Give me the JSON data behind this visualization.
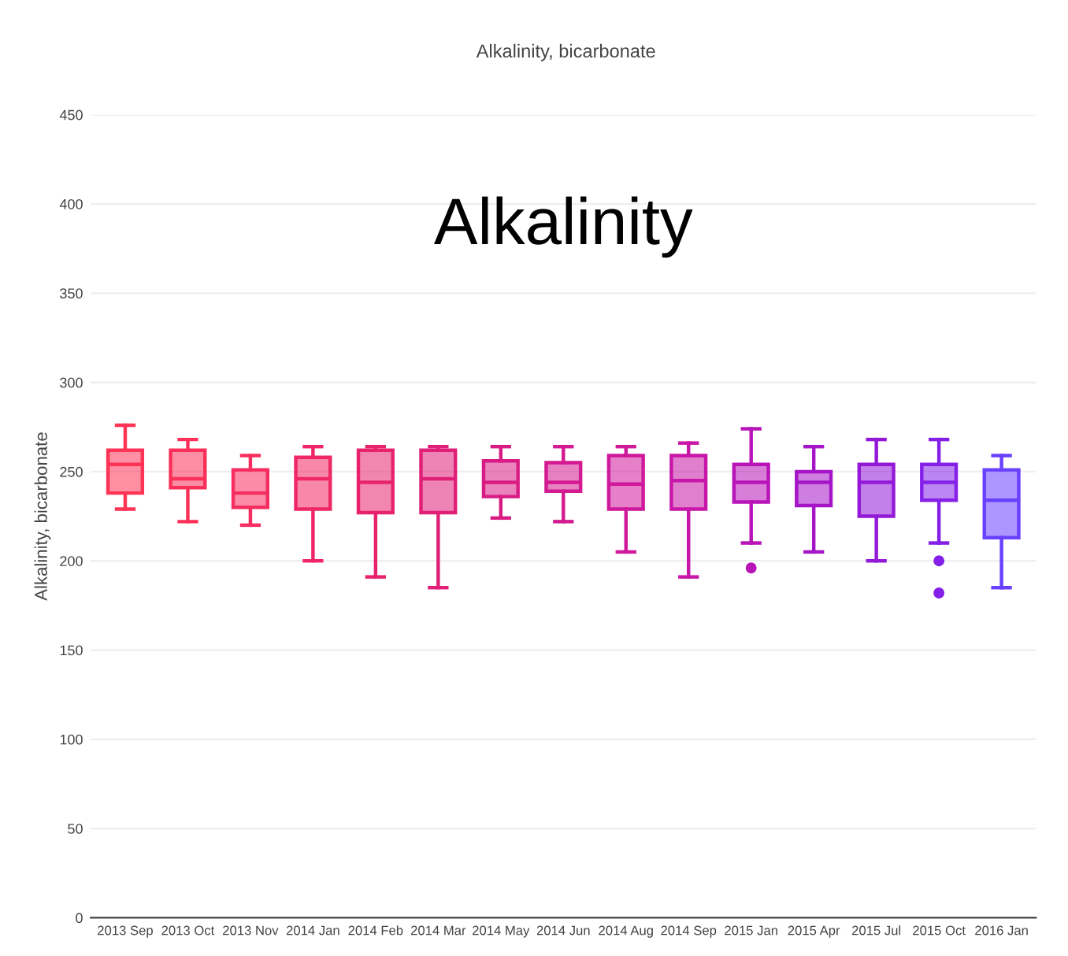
{
  "chart_data": {
    "type": "box",
    "title": "Alkalinity, bicarbonate",
    "ylabel": "Alkalinity, bicarbonate",
    "annotations": [
      "Alkalinity"
    ],
    "categories": [
      "2013 Sep",
      "2013 Oct",
      "2013 Nov",
      "2014 Jan",
      "2014 Feb",
      "2014 Mar",
      "2014 May",
      "2014 Jun",
      "2014 Aug",
      "2014 Sep",
      "2015 Jan",
      "2015 Apr",
      "2015 Jul",
      "2015 Oct",
      "2016 Jan"
    ],
    "colors": [
      "#ff3355",
      "#fb3058",
      "#f72c5f",
      "#f02766",
      "#e8236e",
      "#e01f78",
      "#d91c84",
      "#d41a90",
      "#cf189c",
      "#c816a8",
      "#b814b8",
      "#a614c8",
      "#9418d8",
      "#8420e8",
      "#6a40ff"
    ],
    "boxes": [
      {
        "low": 229,
        "q1": 238,
        "median": 254,
        "q3": 262,
        "high": 276
      },
      {
        "low": 222,
        "q1": 241,
        "median": 246,
        "q3": 262,
        "high": 268
      },
      {
        "low": 220,
        "q1": 230,
        "median": 238,
        "q3": 251,
        "high": 259
      },
      {
        "low": 200,
        "q1": 229,
        "median": 246,
        "q3": 258,
        "high": 264
      },
      {
        "low": 191,
        "q1": 227,
        "median": 244,
        "q3": 262,
        "high": 264
      },
      {
        "low": 185,
        "q1": 227,
        "median": 246,
        "q3": 262,
        "high": 264
      },
      {
        "low": 224,
        "q1": 236,
        "median": 244,
        "q3": 256,
        "high": 264
      },
      {
        "low": 222,
        "q1": 239,
        "median": 244,
        "q3": 255,
        "high": 264
      },
      {
        "low": 205,
        "q1": 229,
        "median": 243,
        "q3": 259,
        "high": 264
      },
      {
        "low": 191,
        "q1": 229,
        "median": 245,
        "q3": 259,
        "high": 266
      },
      {
        "low": 210,
        "q1": 233,
        "median": 244,
        "q3": 254,
        "high": 274,
        "outliers": [
          196
        ]
      },
      {
        "low": 205,
        "q1": 231,
        "median": 244,
        "q3": 250,
        "high": 264
      },
      {
        "low": 200,
        "q1": 225,
        "median": 244,
        "q3": 254,
        "high": 268
      },
      {
        "low": 210,
        "q1": 234,
        "median": 244,
        "q3": 254,
        "high": 268,
        "outliers": [
          200,
          182
        ]
      },
      {
        "low": 185,
        "q1": 213,
        "median": 234,
        "q3": 251,
        "high": 259
      }
    ],
    "ylim": [
      0,
      450
    ],
    "yticks": [
      0,
      50,
      100,
      150,
      200,
      250,
      300,
      350,
      400,
      450
    ],
    "grid": "y"
  }
}
